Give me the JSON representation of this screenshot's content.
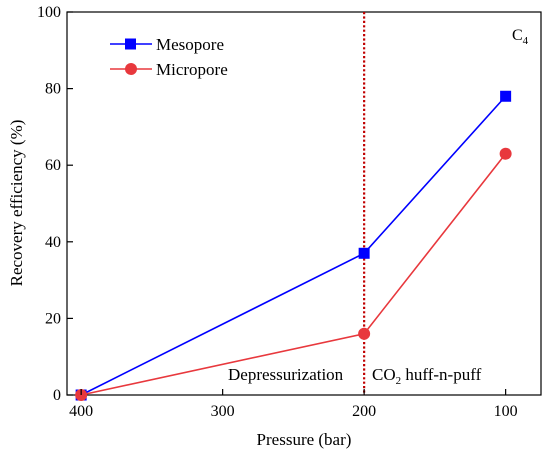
{
  "chart_data": {
    "type": "line",
    "xlabel": "Pressure (bar)",
    "ylabel": "Recovery efficiency (%)",
    "xlim": [
      410,
      75
    ],
    "ylim": [
      0,
      100
    ],
    "x_reversed": true,
    "xticks": [
      400,
      300,
      200,
      100
    ],
    "xtick_labels": [
      "400",
      "300",
      "200",
      "100"
    ],
    "yticks": [
      0,
      20,
      40,
      60,
      80,
      100
    ],
    "ytick_labels": [
      "0",
      "20",
      "40",
      "60",
      "80",
      "100"
    ],
    "grid": false,
    "legend_position": "top-left",
    "corner_label": {
      "main": "C",
      "sub": "4"
    },
    "divider": {
      "x": 200,
      "color": "#c00000",
      "style": "dotted"
    },
    "annotations": [
      {
        "id": "depressurization",
        "text": "Depressurization"
      },
      {
        "id": "huff-n-puff",
        "prefix": "CO",
        "sub": "2",
        "suffix": " huff-n-puff"
      }
    ],
    "series": [
      {
        "name": "Mesopore",
        "color": "#0000ff",
        "marker": "square",
        "x": [
          400,
          200,
          100
        ],
        "y": [
          0,
          37,
          78
        ]
      },
      {
        "name": "Micropore",
        "color": "#e8383d",
        "marker": "circle",
        "x": [
          400,
          200,
          100
        ],
        "y": [
          0,
          16,
          63
        ]
      }
    ]
  }
}
